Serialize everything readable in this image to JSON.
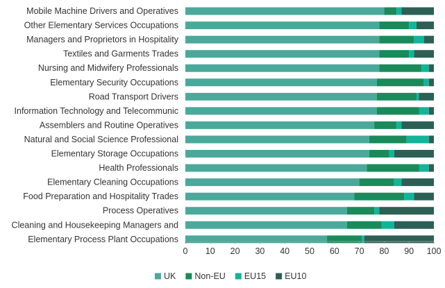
{
  "chart_data": {
    "type": "bar",
    "orientation": "horizontal",
    "stacked": true,
    "categories": [
      "Mobile Machine Drivers and Operatives",
      "Other Elementary Services Occupations",
      "Managers and Proprietors in Hospitality",
      "Textiles and Garments Trades",
      "Nursing and Midwifery Professionals",
      "Elementary Security Occupations",
      "Road Transport Drivers",
      "Information Technology and Telecommunic",
      "Assemblers and Routine Operatives",
      "Natural and Social Science Professional",
      "Elementary Storage Occupations",
      "Health Professionals",
      "Elementary Cleaning Occupations",
      "Food Preparation and Hospitality Trades",
      "Process Operatives",
      "Cleaning and Housekeeping Managers and",
      "Elementary Process Plant Occupations"
    ],
    "series": [
      {
        "name": "UK",
        "color": "#4ba99b",
        "values": [
          80,
          78,
          78,
          78,
          78,
          77,
          77,
          77,
          76,
          74,
          74,
          73,
          70,
          68,
          65,
          65,
          57
        ]
      },
      {
        "name": "Non-EU",
        "color": "#1b8a5a",
        "values": [
          5,
          12,
          14,
          12,
          17,
          19,
          16,
          17,
          9,
          15,
          8,
          21,
          14,
          20,
          11,
          14,
          14
        ]
      },
      {
        "name": "EU15",
        "color": "#10b59a",
        "values": [
          2,
          3,
          4,
          2,
          3,
          2,
          1,
          4,
          2,
          9,
          2,
          4,
          3,
          4,
          2,
          5,
          1
        ]
      },
      {
        "name": "EU10",
        "color": "#2d5f55",
        "values": [
          13,
          7,
          4,
          8,
          2,
          2,
          6,
          2,
          13,
          2,
          16,
          2,
          13,
          8,
          22,
          16,
          28
        ]
      }
    ],
    "xlim": [
      0,
      100
    ],
    "xticks": [
      0,
      10,
      20,
      30,
      40,
      50,
      60,
      70,
      80,
      90,
      100
    ],
    "xlabel": "",
    "ylabel": "",
    "grid": false,
    "legend": {
      "position": "bottom",
      "entries": [
        "UK",
        "Non-EU",
        "EU15",
        "EU10"
      ]
    }
  }
}
